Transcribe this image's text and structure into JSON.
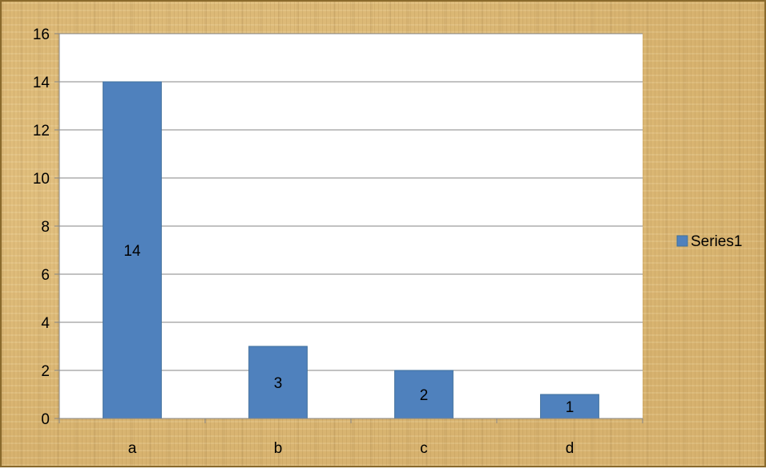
{
  "chart_data": {
    "type": "bar",
    "categories": [
      "a",
      "b",
      "c",
      "d"
    ],
    "series": [
      {
        "name": "Series1",
        "values": [
          14,
          3,
          2,
          1
        ]
      }
    ],
    "data_labels": [
      "14",
      "3",
      "2",
      "1"
    ],
    "ylim": [
      0,
      16
    ],
    "yticks": [
      0,
      2,
      4,
      6,
      8,
      10,
      12,
      14,
      16
    ],
    "title": "",
    "xlabel": "",
    "ylabel": "",
    "grid": true,
    "legend": "right",
    "colors": {
      "bar": "#4f81bd",
      "bar_border": "#41719c",
      "plot_area": "#ffffff",
      "gridline": "#868686",
      "frame": "#8a6a2c",
      "background": "#dbb774"
    }
  }
}
